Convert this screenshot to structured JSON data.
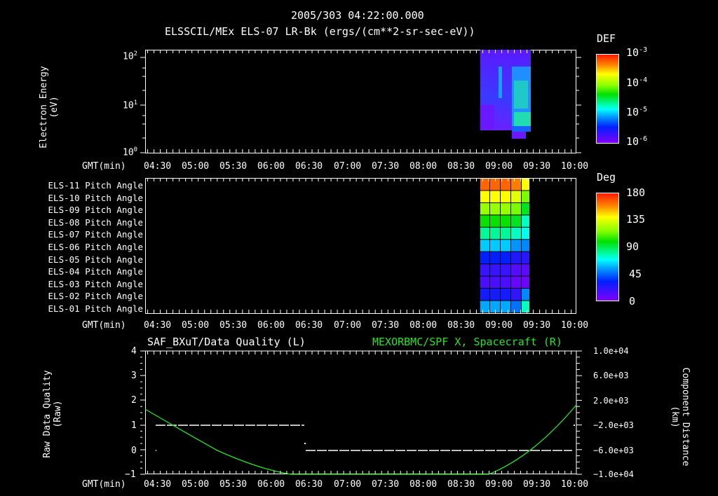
{
  "header": {
    "timestamp": "2005/303 04:22:00.000",
    "panel1_title": "ELSSCIL/MEx ELS-07 LR-Bk  (ergs/(cm**2-sr-sec-eV))"
  },
  "time_axis": {
    "label": "GMT(min)",
    "ticks": [
      "04:30",
      "05:00",
      "05:30",
      "06:00",
      "06:30",
      "07:00",
      "07:30",
      "08:00",
      "08:30",
      "09:00",
      "09:30",
      "10:00"
    ]
  },
  "panel1": {
    "ylabel_line1": "Electron Energy",
    "ylabel_line2": "(eV)",
    "yticks": [
      {
        "base": "10",
        "exp": "2"
      },
      {
        "base": "10",
        "exp": "1"
      },
      {
        "base": "10",
        "exp": "0"
      }
    ],
    "colorbar_title": "DEF",
    "colorbar_ticks": [
      {
        "base": "10",
        "exp": "-3"
      },
      {
        "base": "10",
        "exp": "-4"
      },
      {
        "base": "10",
        "exp": "-5"
      },
      {
        "base": "10",
        "exp": "-6"
      }
    ]
  },
  "panel2": {
    "rows": [
      "ELS-11 Pitch Angle",
      "ELS-10 Pitch Angle",
      "ELS-09 Pitch Angle",
      "ELS-08 Pitch Angle",
      "ELS-07 Pitch Angle",
      "ELS-06 Pitch Angle",
      "ELS-05 Pitch Angle",
      "ELS-04 Pitch Angle",
      "ELS-03 Pitch Angle",
      "ELS-02 Pitch Angle",
      "ELS-01 Pitch Angle"
    ],
    "colorbar_title": "Deg",
    "colorbar_ticks": [
      "180",
      "135",
      "90",
      "45",
      "0"
    ]
  },
  "panel3": {
    "left_title": "SAF_BXuT/Data Quality (L)",
    "right_title": "MEXORBMC/SPF X, Spacecraft (R)",
    "ylabel_line1": "Raw Data Quality",
    "ylabel_line2": "(Raw)",
    "yticks_left": [
      "4",
      "3",
      "2",
      "1",
      "0",
      "−1"
    ],
    "yticks_right": [
      "1.0e+04",
      "6.0e+03",
      "2.0e+03",
      "−2.0e+03",
      "−6.0e+03",
      "−1.0e+04"
    ],
    "ylabel_right_line1": "Component Distance",
    "ylabel_right_line2": "(km)",
    "right_color": "#22e622"
  },
  "chart_data": [
    {
      "type": "heatmap",
      "title": "ELSSCIL/MEx ELS-07 LR-Bk (ergs/(cm**2-sr-sec-eV))",
      "xlabel": "GMT(min)",
      "ylabel": "Electron Energy (eV)",
      "yscale": "log",
      "ylim": [
        1,
        150
      ],
      "x_range": [
        "04:22",
        "10:02"
      ],
      "colorbar": {
        "label": "DEF",
        "scale": "log",
        "range": [
          1e-06,
          0.001
        ]
      },
      "data_extent": {
        "x_start": "08:45",
        "x_end": "09:20",
        "y_min_eV": 2,
        "y_max_eV": 150
      },
      "notes": "Data only between ~08:45 and ~09:20; mostly 1e-6 to 1e-5 (blue/violet) with enhanced ~3e-5 (cyan/green) band near 09:05-09:20 at 3-40 eV"
    },
    {
      "type": "heatmap",
      "title": "Pitch Angle",
      "xlabel": "GMT(min)",
      "categories": [
        "ELS-11",
        "ELS-10",
        "ELS-09",
        "ELS-08",
        "ELS-07",
        "ELS-06",
        "ELS-05",
        "ELS-04",
        "ELS-03",
        "ELS-02",
        "ELS-01"
      ],
      "colorbar": {
        "label": "Deg",
        "range": [
          0,
          180
        ],
        "ticks": [
          0,
          45,
          90,
          135,
          180
        ]
      },
      "data_extent": {
        "x_start": "08:45",
        "x_end": "09:22"
      },
      "approx_values_deg": [
        165,
        140,
        120,
        100,
        80,
        60,
        35,
        20,
        15,
        30,
        55
      ]
    },
    {
      "type": "line",
      "title": "SAF_BXuT/Data Quality (L) ; MEXORBMC/SPF X, Spacecraft (R)",
      "xlabel": "GMT(min)",
      "x_range": [
        "04:22",
        "10:02"
      ],
      "series": [
        {
          "name": "SAF_BXuT/Data Quality (L)",
          "axis": "left",
          "ylim": [
            -1,
            4
          ],
          "x": [
            "04:27",
            "06:26",
            "06:27",
            "09:58"
          ],
          "values": [
            1,
            1,
            0,
            0
          ]
        },
        {
          "name": "MEXORBMC/SPF X, Spacecraft (R)",
          "axis": "right",
          "ylim": [
            -10000,
            10000
          ],
          "color": "#22e622",
          "x": [
            "04:22",
            "05:00",
            "05:30",
            "06:00",
            "06:15",
            "08:55",
            "09:00",
            "09:30",
            "10:00"
          ],
          "values": [
            1600,
            -2500,
            -5800,
            -8700,
            -10000,
            -10000,
            -9400,
            -4500,
            1600
          ]
        }
      ],
      "ylabel": "Raw Data Quality (Raw)",
      "ylabel_right": "Component Distance (km)"
    }
  ]
}
